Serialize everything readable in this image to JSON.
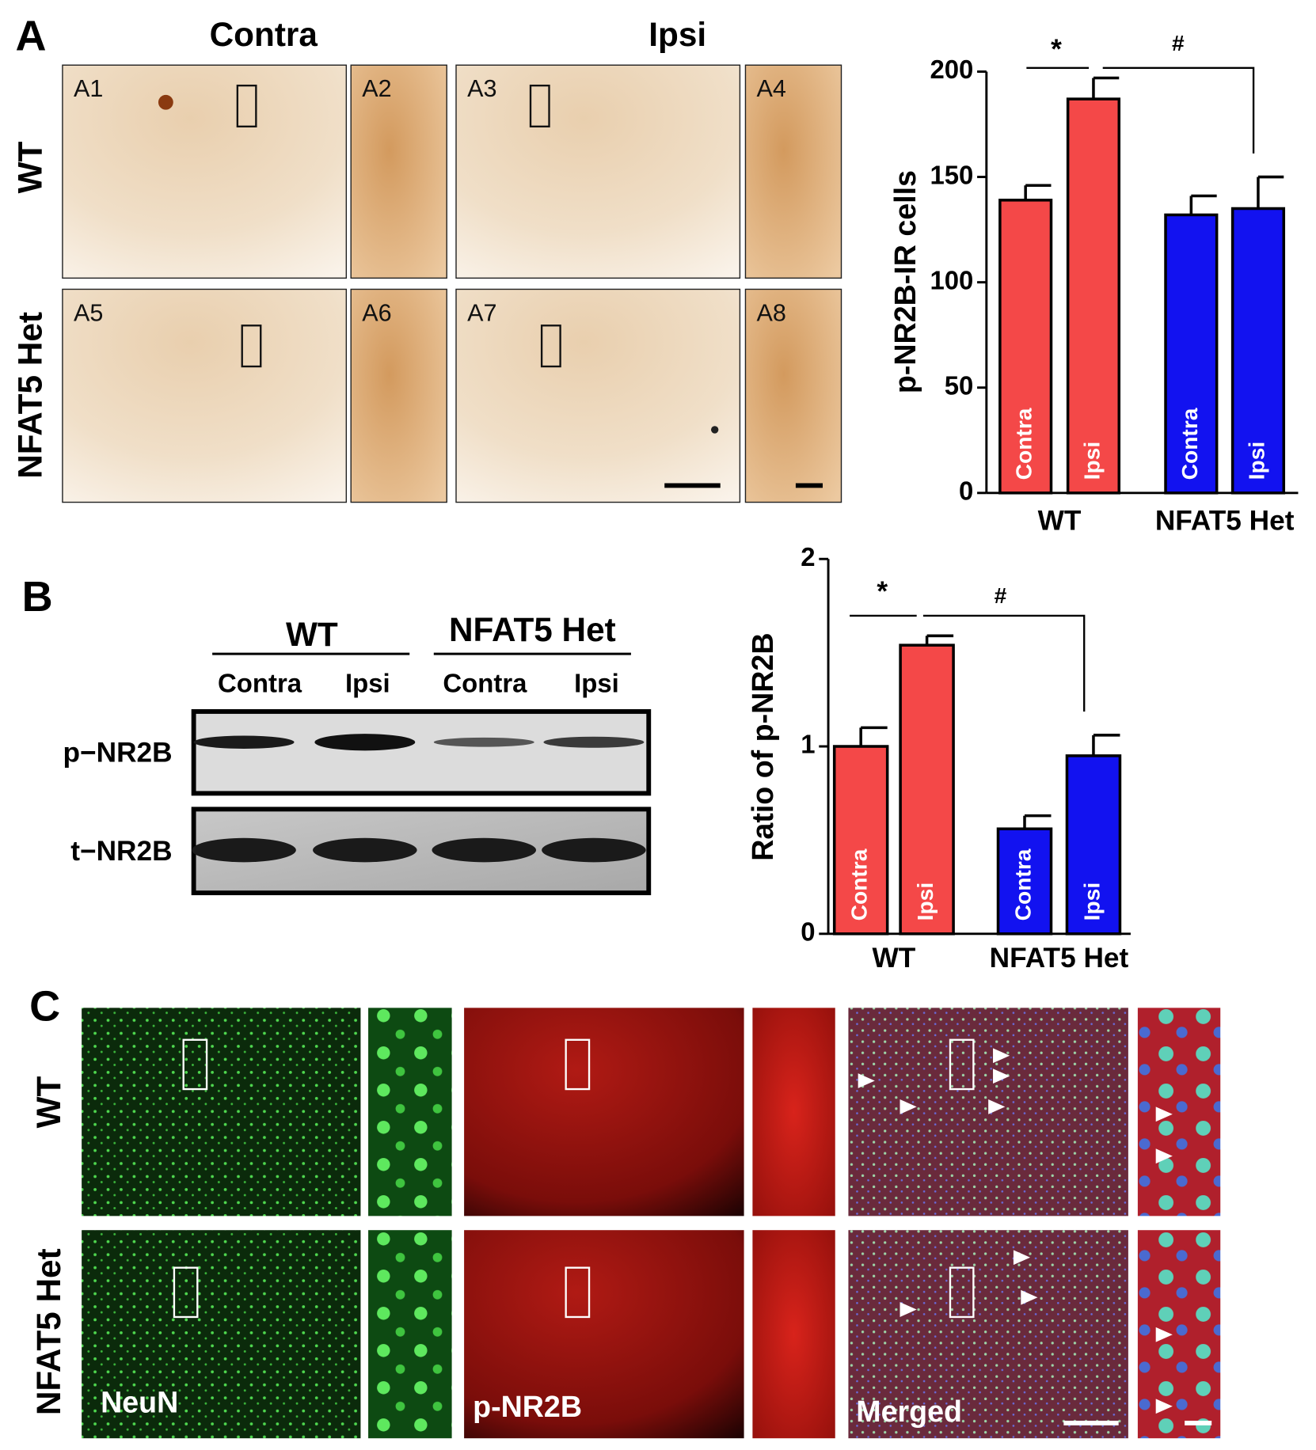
{
  "panel_labels": [
    "A",
    "B",
    "C"
  ],
  "panel_a": {
    "column_headers": [
      "Contra",
      "Ipsi"
    ],
    "row_labels": [
      "WT",
      "NFAT5 Het"
    ],
    "image_labels": [
      "A1",
      "A2",
      "A3",
      "A4",
      "A5",
      "A6",
      "A7",
      "A8"
    ]
  },
  "panel_b": {
    "group_labels": [
      "WT",
      "NFAT5 Het"
    ],
    "lane_labels": [
      "Contra",
      "Ipsi",
      "Contra",
      "Ipsi"
    ],
    "row_labels": [
      "p−NR2B",
      "t−NR2B"
    ]
  },
  "panel_c": {
    "row_labels": [
      "WT",
      "NFAT5 Het"
    ],
    "channel_labels": [
      "NeuN",
      "p-NR2B",
      "Merged"
    ]
  },
  "chart_data": [
    {
      "type": "bar",
      "y_label": "p-NR2B-IR cells",
      "categories": [
        "WT",
        "NFAT5 Het"
      ],
      "group_colors": [
        "#f44848",
        "#1212f0"
      ],
      "series": [
        {
          "name": "Contra",
          "values": [
            139,
            132
          ],
          "errors": [
            7,
            9
          ]
        },
        {
          "name": "Ipsi",
          "values": [
            187,
            135
          ],
          "errors": [
            10,
            15
          ]
        }
      ],
      "ylim": [
        0,
        200
      ],
      "yticks": [
        0,
        50,
        100,
        150,
        200
      ],
      "annotations": [
        "*",
        "#"
      ]
    },
    {
      "type": "bar",
      "y_label": "Ratio of p-NR2B",
      "categories": [
        "WT",
        "NFAT5 Het"
      ],
      "group_colors": [
        "#f44848",
        "#1212f0"
      ],
      "series": [
        {
          "name": "Contra",
          "values": [
            1.0,
            0.56
          ],
          "errors": [
            0.1,
            0.07
          ]
        },
        {
          "name": "Ipsi",
          "values": [
            1.54,
            0.95
          ],
          "errors": [
            0.05,
            0.11
          ]
        }
      ],
      "ylim": [
        0,
        2
      ],
      "yticks": [
        0,
        1,
        2
      ],
      "annotations": [
        "*",
        "#"
      ]
    }
  ]
}
